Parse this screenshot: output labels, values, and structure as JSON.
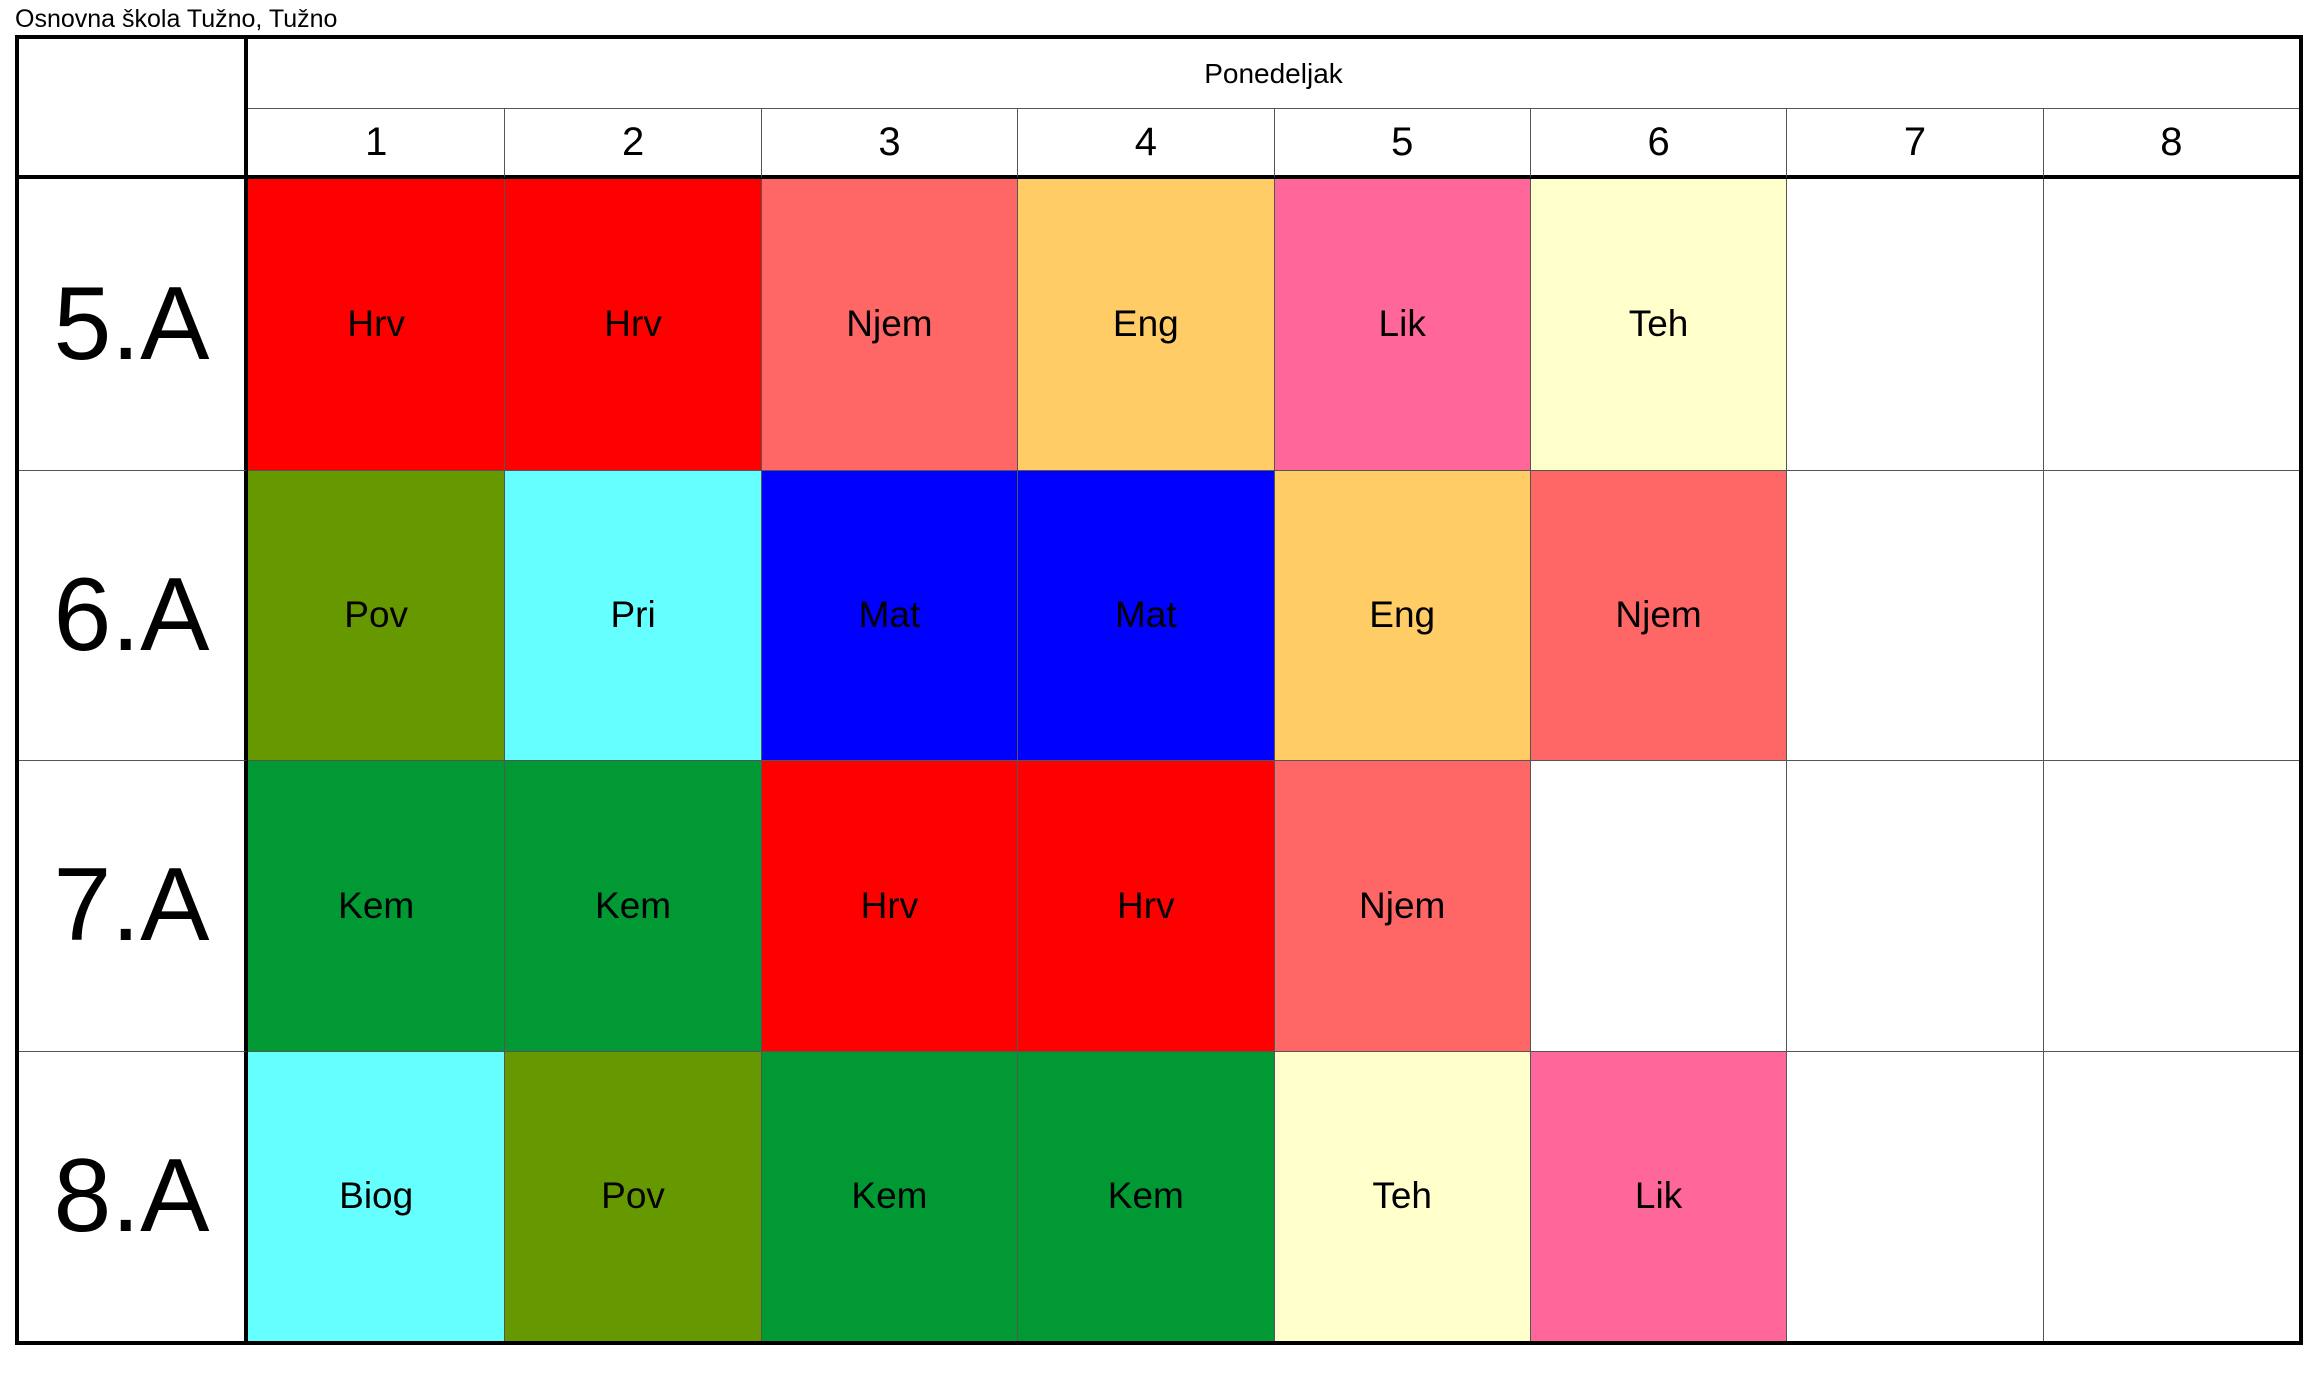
{
  "school_title": "Osnovna škola Tužno, Tužno",
  "day": "Ponedeljak",
  "periods": [
    "1",
    "2",
    "3",
    "4",
    "5",
    "6",
    "7",
    "8"
  ],
  "rows": [
    {
      "class": "5.A",
      "cells": [
        {
          "subject": "Hrv",
          "color": "#ff0000"
        },
        {
          "subject": "Hrv",
          "color": "#ff0000"
        },
        {
          "subject": "Njem",
          "color": "#ff6666"
        },
        {
          "subject": "Eng",
          "color": "#ffcc66"
        },
        {
          "subject": "Lik",
          "color": "#ff6699"
        },
        {
          "subject": "Teh",
          "color": "#ffffcc"
        },
        {
          "subject": "",
          "color": "#ffffff"
        },
        {
          "subject": "",
          "color": "#ffffff"
        }
      ]
    },
    {
      "class": "6.A",
      "cells": [
        {
          "subject": "Pov",
          "color": "#669900"
        },
        {
          "subject": "Pri",
          "color": "#66ffff"
        },
        {
          "subject": "Mat",
          "color": "#0000ff"
        },
        {
          "subject": "Mat",
          "color": "#0000ff"
        },
        {
          "subject": "Eng",
          "color": "#ffcc66"
        },
        {
          "subject": "Njem",
          "color": "#ff6666"
        },
        {
          "subject": "",
          "color": "#ffffff"
        },
        {
          "subject": "",
          "color": "#ffffff"
        }
      ]
    },
    {
      "class": "7.A",
      "cells": [
        {
          "subject": "Kem",
          "color": "#009933"
        },
        {
          "subject": "Kem",
          "color": "#009933"
        },
        {
          "subject": "Hrv",
          "color": "#ff0000"
        },
        {
          "subject": "Hrv",
          "color": "#ff0000"
        },
        {
          "subject": "Njem",
          "color": "#ff6666"
        },
        {
          "subject": "",
          "color": "#ffffff"
        },
        {
          "subject": "",
          "color": "#ffffff"
        },
        {
          "subject": "",
          "color": "#ffffff"
        }
      ]
    },
    {
      "class": "8.A",
      "cells": [
        {
          "subject": "Biog",
          "color": "#66ffff"
        },
        {
          "subject": "Pov",
          "color": "#669900"
        },
        {
          "subject": "Kem",
          "color": "#009933"
        },
        {
          "subject": "Kem",
          "color": "#009933"
        },
        {
          "subject": "Teh",
          "color": "#ffffcc"
        },
        {
          "subject": "Lik",
          "color": "#ff6699"
        },
        {
          "subject": "",
          "color": "#ffffff"
        },
        {
          "subject": "",
          "color": "#ffffff"
        }
      ]
    }
  ]
}
